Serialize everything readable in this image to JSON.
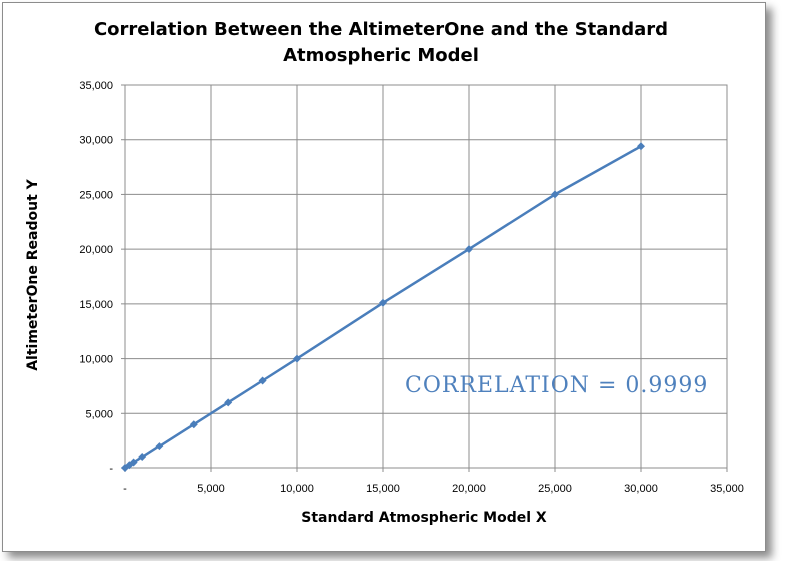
{
  "chart_data": {
    "type": "scatter",
    "title": "Correlation Between the AltimeterOne and the Standard Atmospheric Model",
    "title_lines": [
      "Correlation Between the AltimeterOne and the Standard",
      "Atmospheric Model"
    ],
    "xlabel": "Standard Atmospheric Model X",
    "ylabel": "AltimeterOne Readout Y",
    "xlim": [
      0,
      35000
    ],
    "ylim": [
      0,
      35000
    ],
    "x_ticks": [
      0,
      5000,
      10000,
      15000,
      20000,
      25000,
      30000,
      35000
    ],
    "y_ticks": [
      0,
      5000,
      10000,
      15000,
      20000,
      25000,
      30000,
      35000
    ],
    "x_tick_labels": [
      "-",
      "5,000",
      "10,000",
      "15,000",
      "20,000",
      "25,000",
      "30,000",
      "35,000"
    ],
    "y_tick_labels": [
      "-",
      "5,000",
      "10,000",
      "15,000",
      "20,000",
      "25,000",
      "30,000",
      "35,000"
    ],
    "grid": true,
    "legend": "none",
    "series": [
      {
        "x": [
          0,
          250,
          500,
          1000,
          2000,
          4000,
          6000,
          8000,
          10000,
          15000,
          20000,
          25000,
          30000
        ],
        "y": [
          0,
          250,
          500,
          1000,
          2000,
          4000,
          6000,
          8000,
          10000,
          15100,
          20000,
          25000,
          29400
        ],
        "color": "#4a7ebb",
        "line": true,
        "marker": "diamond"
      }
    ],
    "annotation": "CORRELATION = 0.9999",
    "annotation_color": "#4f81bd"
  }
}
